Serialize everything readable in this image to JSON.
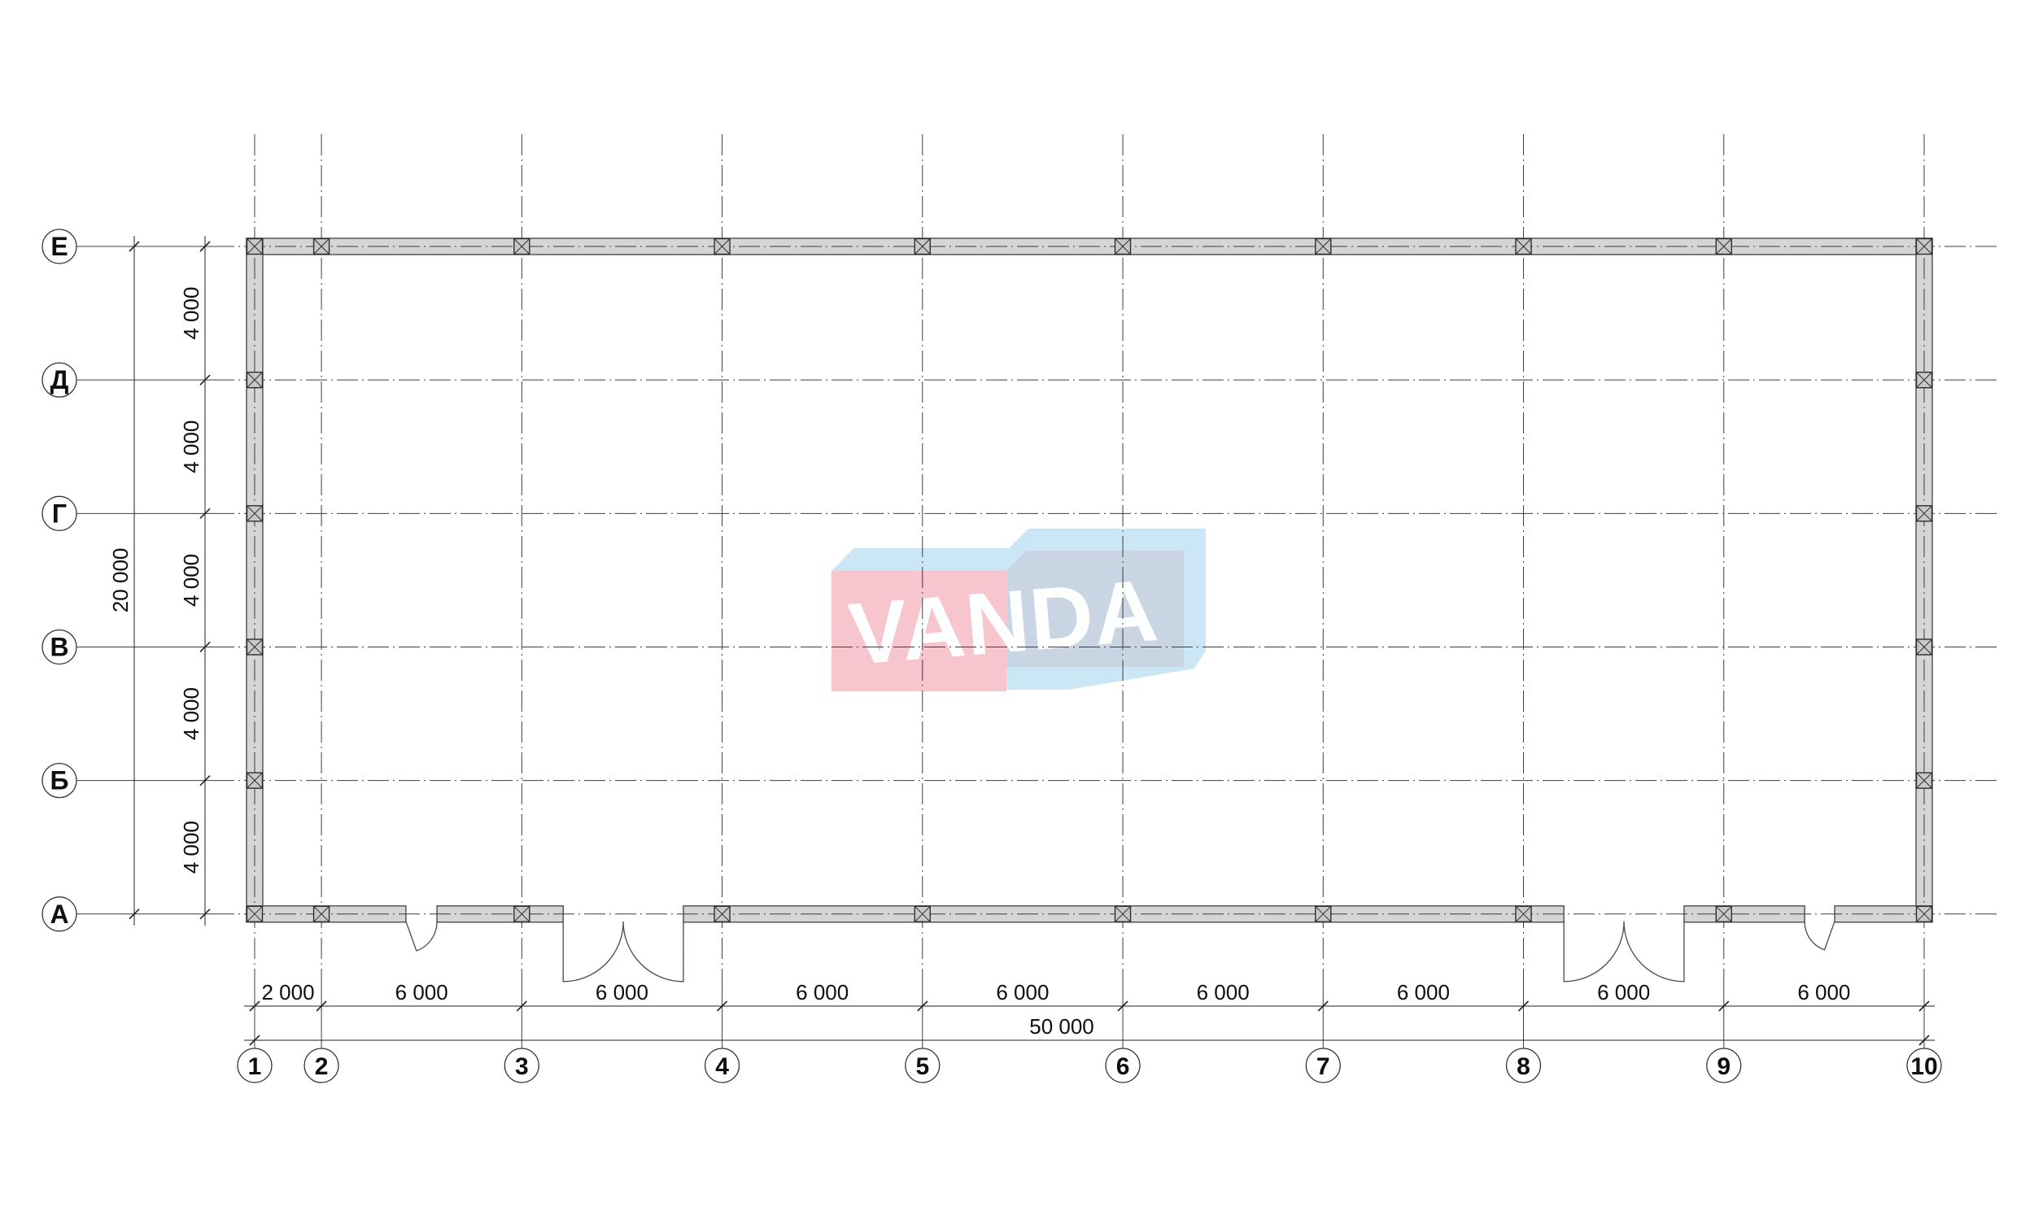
{
  "drawing": {
    "type": "architectural-floor-plan",
    "watermark": {
      "text": "VANDA",
      "pink": "#f6c5cd",
      "light_blue": "#cbe7f6",
      "panel_blue": "#cad5e3",
      "text_color": "#fdfefe"
    },
    "row_axes": [
      {
        "label": "Е"
      },
      {
        "label": "Д"
      },
      {
        "label": "Г"
      },
      {
        "label": "В"
      },
      {
        "label": "Б"
      },
      {
        "label": "А"
      }
    ],
    "col_axes": [
      {
        "label": "1"
      },
      {
        "label": "2"
      },
      {
        "label": "3"
      },
      {
        "label": "4"
      },
      {
        "label": "5"
      },
      {
        "label": "6"
      },
      {
        "label": "7"
      },
      {
        "label": "8"
      },
      {
        "label": "9"
      },
      {
        "label": "10"
      }
    ],
    "row_spacings_mm": [
      4000,
      4000,
      4000,
      4000,
      4000
    ],
    "col_spacings_mm": [
      2000,
      6000,
      6000,
      6000,
      6000,
      6000,
      6000,
      6000,
      6000
    ],
    "dim_labels": {
      "left_segments": [
        "4 000",
        "4 000",
        "4 000",
        "4 000",
        "4 000"
      ],
      "left_total": "20 000",
      "bottom_segments": [
        "2 000",
        "6 000",
        "6 000",
        "6 000",
        "6 000",
        "6 000",
        "6 000",
        "6 000",
        "6 000"
      ],
      "bottom_total": "50 000"
    },
    "doors": [
      {
        "type": "single",
        "hinge": "left",
        "from_mm": 4530,
        "to_mm": 5460
      },
      {
        "type": "double",
        "hinge": "both",
        "from_mm": 9240,
        "to_mm": 12840
      },
      {
        "type": "double",
        "hinge": "both",
        "from_mm": 39210,
        "to_mm": 42810
      },
      {
        "type": "single",
        "hinge": "right",
        "from_mm": 46420,
        "to_mm": 47320
      }
    ],
    "colors": {
      "wall_fill": "#d5d5d5",
      "wall_stroke": "#4d4d4d",
      "column_fill": "#c8c8c8",
      "column_stroke": "#2e2e2e",
      "grid_line": "#3c3c3c",
      "dim_line": "#222222",
      "text": "#0f0f0f",
      "bubble_stroke": "#333333",
      "background": "#ffffff"
    }
  }
}
